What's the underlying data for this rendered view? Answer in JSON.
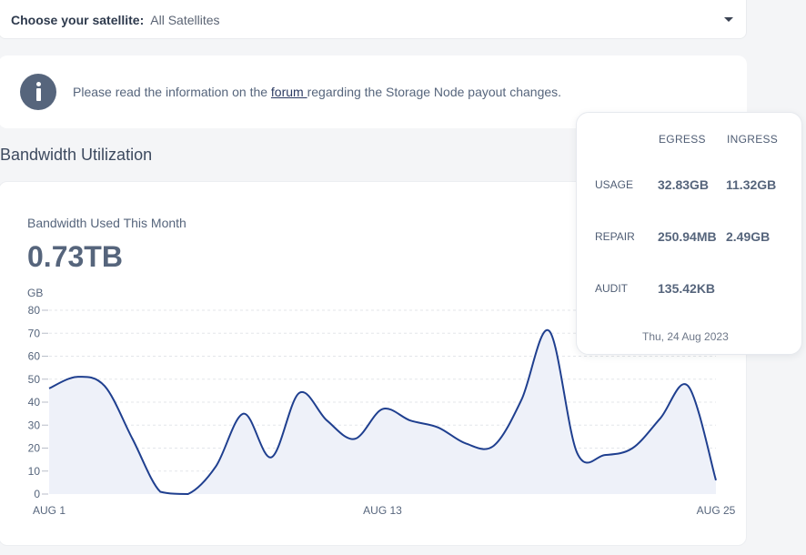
{
  "satellite": {
    "label": "Choose your satellite:",
    "value": "All Satellites",
    "dropdown_icon": "chevron-down-icon"
  },
  "notice": {
    "icon": "info-icon",
    "text_before": "Please read the information on the ",
    "link_text": "forum ",
    "text_after": "regarding the Storage Node payout changes."
  },
  "section_title": "Bandwidth Utilization",
  "bandwidth": {
    "caption": "Bandwidth Used This Month",
    "amount": "0.73TB"
  },
  "tooltip": {
    "headers": [
      "EGRESS",
      "INGRESS"
    ],
    "rows": [
      {
        "label": "USAGE",
        "egress": "32.83GB",
        "ingress": "11.32GB"
      },
      {
        "label": "REPAIR",
        "egress": "250.94MB",
        "ingress": "2.49GB"
      },
      {
        "label": "AUDIT",
        "egress": "135.42KB",
        "ingress": ""
      }
    ],
    "date": "Thu, 24 Aug 2023"
  },
  "colors": {
    "line": "#1f3f8f",
    "fill": "#eef1f9",
    "grid": "#e3e6ea",
    "text": "#56657c"
  },
  "chart_data": {
    "type": "area",
    "ylabel": "GB",
    "ylim": [
      0,
      80
    ],
    "yticks": [
      0,
      10,
      20,
      30,
      40,
      50,
      60,
      70,
      80
    ],
    "xtick_labels": [
      "AUG 1",
      "AUG 13",
      "AUG 25"
    ],
    "grid": true,
    "x": [
      1,
      2,
      3,
      4,
      5,
      6,
      7,
      8,
      9,
      10,
      11,
      12,
      13,
      14,
      15,
      16,
      17,
      18,
      19,
      20,
      21,
      22,
      23,
      24,
      25
    ],
    "series": [
      {
        "values": [
          46,
          51,
          47,
          24,
          1,
          0,
          12,
          35,
          16,
          44,
          32,
          24,
          37,
          32,
          29,
          22,
          21,
          41,
          71,
          18,
          17,
          20,
          33,
          47,
          6
        ]
      }
    ]
  }
}
